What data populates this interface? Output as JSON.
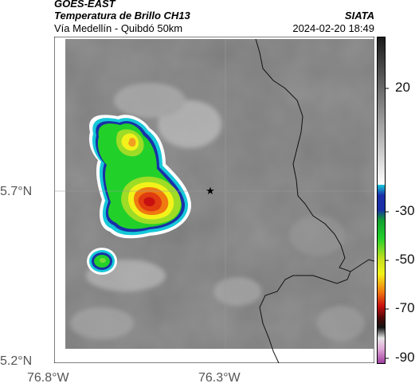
{
  "header": {
    "satellite": "GOES-EAST",
    "product": "Temperatura de Brillo CH13",
    "region": "Vía Medellín - Quibdó 50km",
    "agency": "SIATA",
    "datetime": "2024-02-20 18:49"
  },
  "map": {
    "x_ticks": [
      "76.8°W",
      "76.3°W"
    ],
    "y_ticks": [
      "5.7°N",
      "5.2°N"
    ],
    "marker": "star-marker"
  },
  "colorbar": {
    "tick_labels": [
      "20",
      "-30",
      "-50",
      "-70",
      "-90"
    ],
    "colors": {
      "gray_top": "#1a1a1a",
      "gray_bottom": "#ffffff",
      "cyan": "#16c8d8",
      "blue": "#1a2fa8",
      "green": "#22d02a",
      "yellow": "#f2f21a",
      "orange": "#f07a10",
      "red": "#c81010",
      "black": "#141414",
      "magenta": "#d060c0"
    }
  }
}
